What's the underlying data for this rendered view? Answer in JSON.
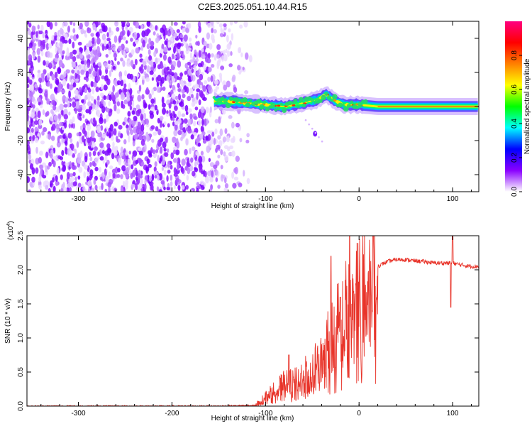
{
  "title": "C2E3.2025.051.10.44.R15",
  "chart_data": [
    {
      "type": "heatmap",
      "xlabel": "Height of straight line (km)",
      "ylabel": "Frequency (Hz)",
      "xlim": [
        -355,
        128
      ],
      "ylim": [
        -50,
        50
      ],
      "xticks": [
        -300,
        -200,
        -100,
        0,
        100
      ],
      "yticks": [
        -40,
        -20,
        0,
        20,
        40
      ],
      "colorbar": {
        "label": "Normalized spectral amplitude",
        "range": [
          0,
          1
        ],
        "ticks": [
          "0.0",
          "0.2",
          "0.4",
          "0.6",
          "0.8"
        ],
        "colormap": [
          "#ffffff",
          "#8a00ff",
          "#0000ff",
          "#00ffff",
          "#00ff00",
          "#ffff00",
          "#ff8000",
          "#ff0000",
          "#ff0080"
        ]
      },
      "noise_region": {
        "x_range": [
          -355,
          -125
        ],
        "freq_range": [
          -50,
          50
        ],
        "amplitude": 0.2
      },
      "signal_track": {
        "x": [
          -155,
          -140,
          -120,
          -100,
          -80,
          -60,
          -45,
          -35,
          -25,
          -15,
          0,
          20,
          60,
          100,
          128
        ],
        "freq": [
          3,
          3,
          2,
          1,
          0,
          2,
          4,
          7,
          3,
          1,
          1,
          0,
          0,
          0,
          0
        ],
        "amplitude_peak": 1.0
      },
      "secondary_blob": {
        "x": -47,
        "freq": -16
      }
    },
    {
      "type": "line",
      "xlabel": "Height of straight line (km)",
      "ylabel": "SNR (10 * v/v)",
      "y_multiplier_label": "(x10",
      "y_multiplier_exp": "4",
      "xlim": [
        -355,
        128
      ],
      "ylim": [
        0,
        2.5
      ],
      "xticks": [
        -300,
        -200,
        -100,
        0,
        100
      ],
      "yticks": [
        "0.0",
        "0.5",
        "1.0",
        "1.5",
        "2.0",
        "2.5"
      ],
      "color": "#e8342a",
      "series": [
        {
          "x": [
            -355,
            -300,
            -250,
            -200,
            -150,
            -110,
            -100,
            -90,
            -80,
            -70,
            -60,
            -50,
            -40,
            -30,
            -20,
            -10,
            0,
            10,
            20,
            30,
            40,
            50,
            60,
            70,
            80,
            90,
            100,
            110,
            120,
            128
          ],
          "values": [
            0.0,
            0.0,
            0.0,
            0.0,
            0.0,
            0.01,
            0.15,
            0.25,
            0.35,
            0.35,
            0.45,
            0.55,
            0.7,
            1.0,
            1.3,
            1.5,
            1.7,
            1.9,
            2.05,
            2.12,
            2.15,
            2.15,
            2.13,
            2.12,
            2.1,
            2.1,
            2.1,
            2.07,
            2.05,
            2.05
          ]
        }
      ],
      "spikes": [
        {
          "x": -75,
          "value": 0.75
        },
        {
          "x": -30,
          "value": 2.2
        },
        {
          "x": -20,
          "value": 1.6
        },
        {
          "x": -10,
          "value": 2.55
        },
        {
          "x": 15,
          "value": 2.5
        },
        {
          "x": 98,
          "value": 1.45
        },
        {
          "x": 100,
          "value": 2.6
        }
      ]
    }
  ]
}
